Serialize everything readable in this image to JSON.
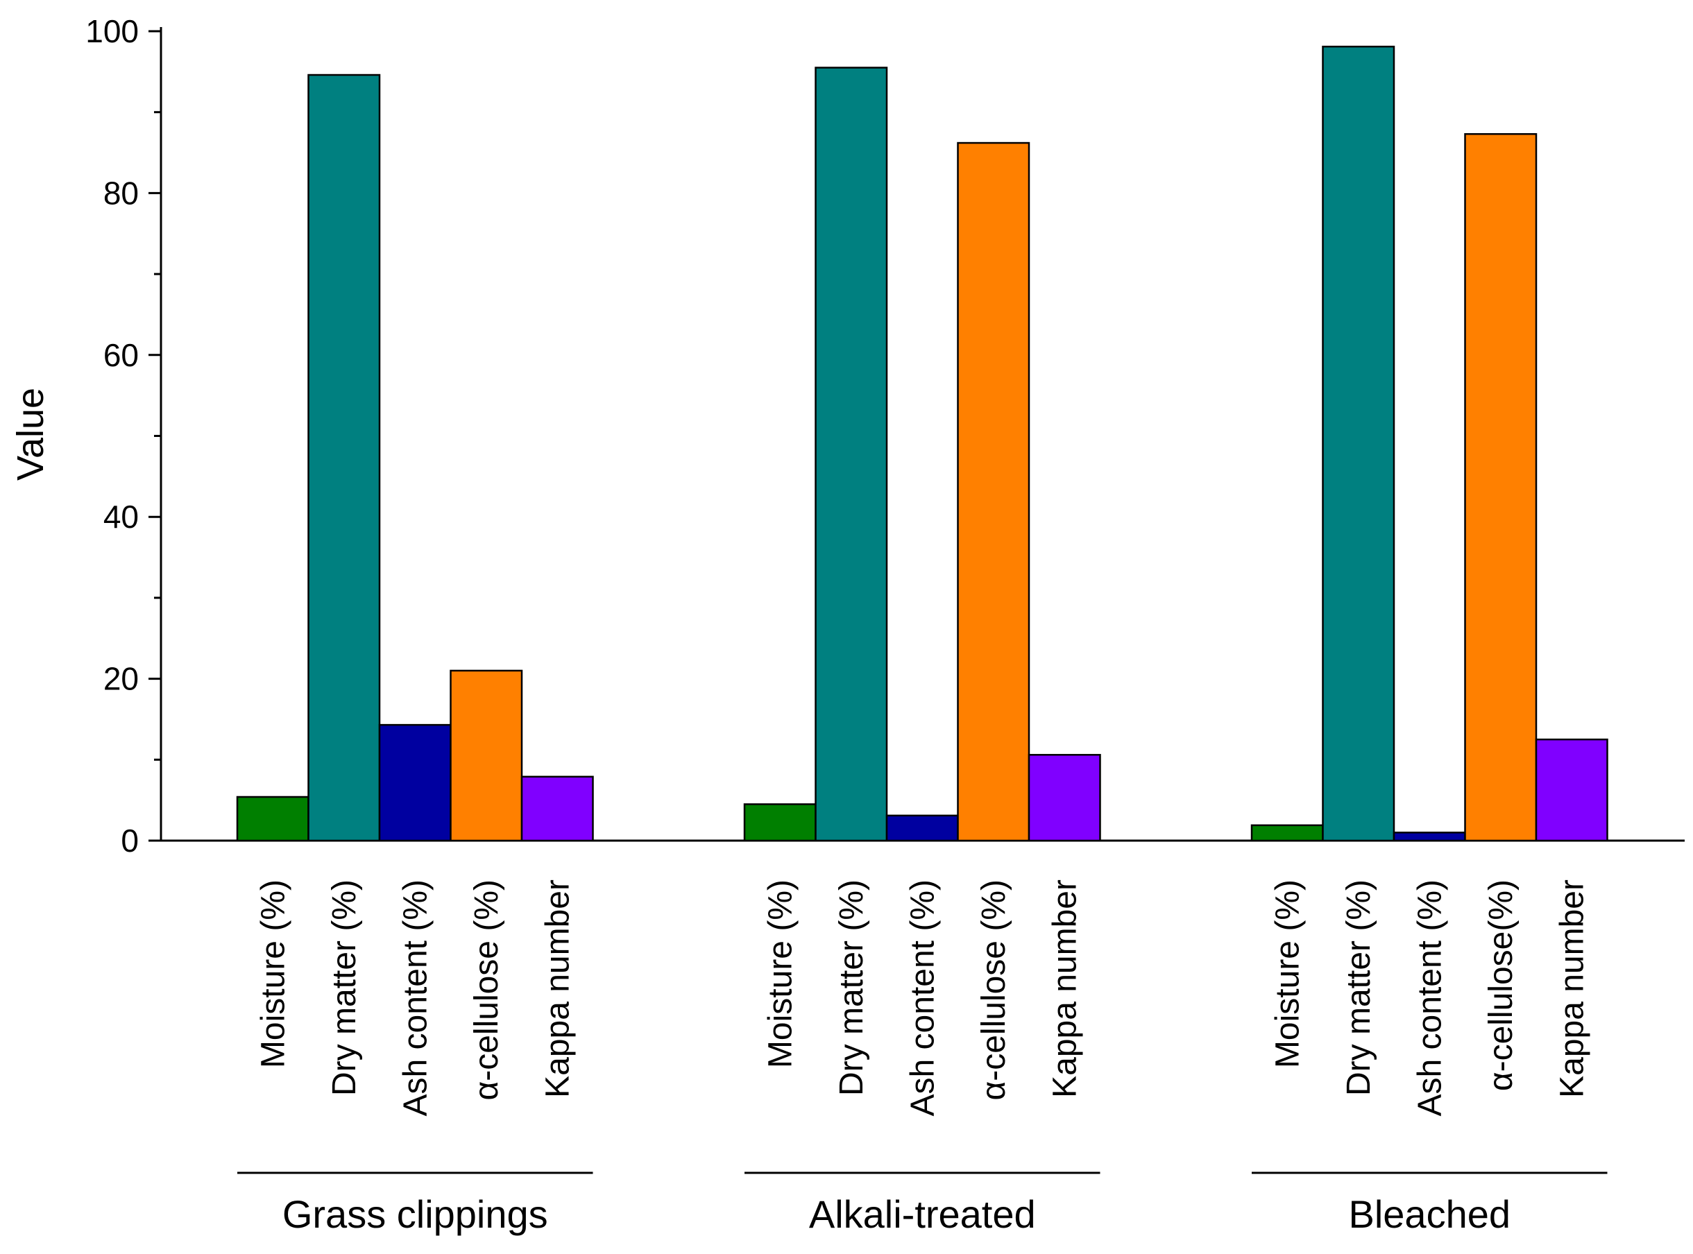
{
  "chart_data": {
    "type": "bar",
    "title": "",
    "xlabel": "",
    "ylabel": "Value",
    "ylim": [
      0,
      100
    ],
    "y_ticks": [
      "0",
      "20",
      "40",
      "60",
      "80",
      "100"
    ],
    "grid": false,
    "groups": [
      {
        "name": "Grass clippings",
        "bars": [
          {
            "label": "Moisture (%)",
            "value": 5.4,
            "color": "#007F00"
          },
          {
            "label": "Dry matter (%)",
            "value": 94.6,
            "color": "#008080"
          },
          {
            "label": "Ash content (%)",
            "value": 14.3,
            "color": "#0000A0"
          },
          {
            "label": "α-cellulose (%)",
            "value": 21.0,
            "color": "#FF8000"
          },
          {
            "label": "Kappa number",
            "value": 7.9,
            "color": "#8000FF"
          }
        ]
      },
      {
        "name": "Alkali-treated",
        "bars": [
          {
            "label": "Moisture (%)",
            "value": 4.5,
            "color": "#007F00"
          },
          {
            "label": "Dry matter (%)",
            "value": 95.5,
            "color": "#008080"
          },
          {
            "label": "Ash content (%)",
            "value": 3.1,
            "color": "#0000A0"
          },
          {
            "label": "α-cellulose (%)",
            "value": 86.2,
            "color": "#FF8000"
          },
          {
            "label": "Kappa number",
            "value": 10.6,
            "color": "#8000FF"
          }
        ]
      },
      {
        "name": "Bleached",
        "bars": [
          {
            "label": "Moisture (%)",
            "value": 1.9,
            "color": "#007F00"
          },
          {
            "label": "Dry matter (%)",
            "value": 98.1,
            "color": "#008080"
          },
          {
            "label": "Ash content (%)",
            "value": 1.0,
            "color": "#0000A0"
          },
          {
            "label": "α-cellulose(%)",
            "value": 87.3,
            "color": "#FF8000"
          },
          {
            "label": "Kappa number",
            "value": 12.5,
            "color": "#8000FF"
          }
        ]
      }
    ]
  }
}
